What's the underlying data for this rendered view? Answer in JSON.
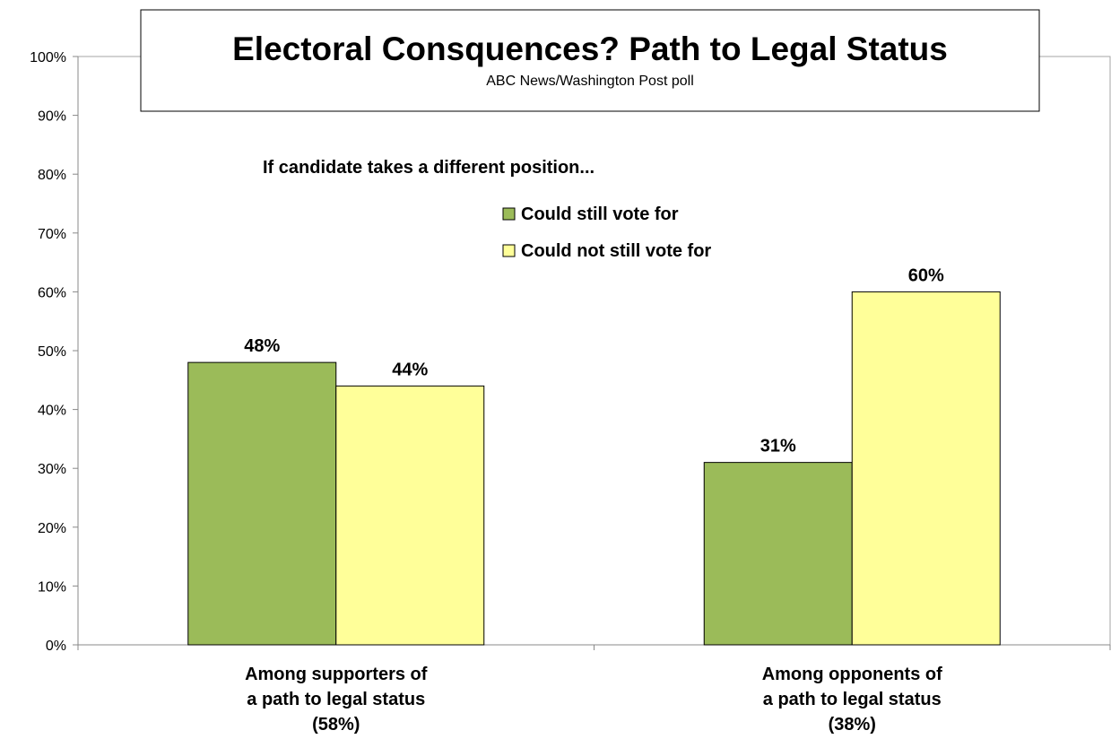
{
  "chart_data": {
    "type": "bar",
    "title": "Electoral Consquences? Path to Legal Status",
    "subtitle": "ABC News/Washington Post poll",
    "annotation": "If candidate takes a different position...",
    "categories": [
      [
        "Among supporters of",
        "a path to legal status",
        "(58%)"
      ],
      [
        "Among opponents of",
        "a path to legal status",
        "(38%)"
      ]
    ],
    "series": [
      {
        "name": "Could still vote for",
        "values": [
          48,
          31
        ],
        "labels": [
          "48%",
          "31%"
        ],
        "color": "#9bbb59"
      },
      {
        "name": "Could not still vote for",
        "values": [
          44,
          60
        ],
        "labels": [
          "44%",
          "60%"
        ],
        "color": "#ffff99"
      }
    ],
    "ylim": [
      0,
      100
    ],
    "yticks": [
      0,
      10,
      20,
      30,
      40,
      50,
      60,
      70,
      80,
      90,
      100
    ],
    "ytick_labels": [
      "0%",
      "10%",
      "20%",
      "30%",
      "40%",
      "50%",
      "60%",
      "70%",
      "80%",
      "90%",
      "100%"
    ],
    "grid": false,
    "legend_position": "top-center",
    "colors": {
      "plot_border": "#a6a6a6",
      "bar_outline": "#000000"
    }
  }
}
